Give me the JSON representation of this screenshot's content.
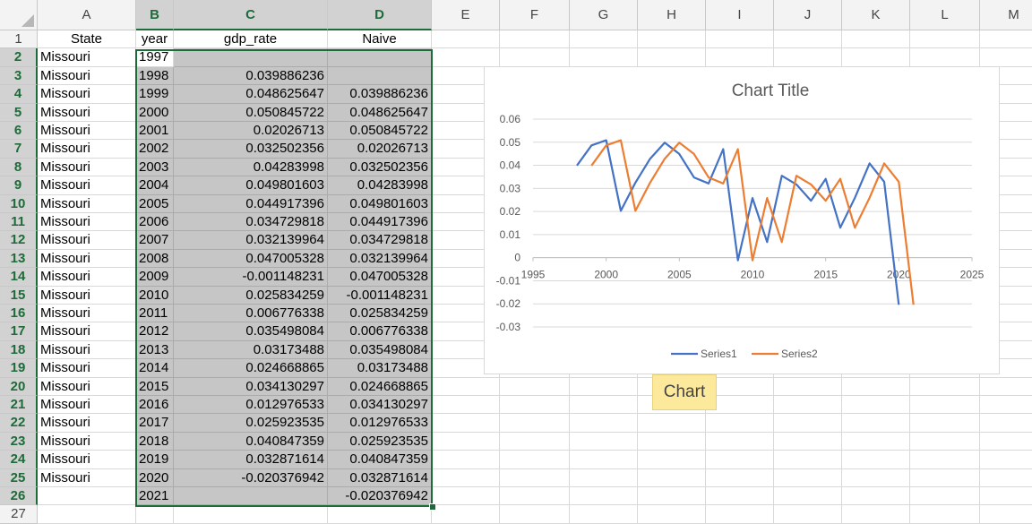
{
  "columns": [
    "A",
    "B",
    "C",
    "D",
    "E",
    "F",
    "G",
    "H",
    "I",
    "J",
    "K",
    "L",
    "M"
  ],
  "selected_columns": [
    "B",
    "C",
    "D"
  ],
  "headers": {
    "state": "State",
    "year": "year",
    "gdp_rate": "gdp_rate",
    "naive": "Naive"
  },
  "rows": [
    {
      "state": "Missouri",
      "year": "1997",
      "gdp_rate": "",
      "naive": ""
    },
    {
      "state": "Missouri",
      "year": "1998",
      "gdp_rate": "0.039886236",
      "naive": ""
    },
    {
      "state": "Missouri",
      "year": "1999",
      "gdp_rate": "0.048625647",
      "naive": "0.039886236"
    },
    {
      "state": "Missouri",
      "year": "2000",
      "gdp_rate": "0.050845722",
      "naive": "0.048625647"
    },
    {
      "state": "Missouri",
      "year": "2001",
      "gdp_rate": "0.02026713",
      "naive": "0.050845722"
    },
    {
      "state": "Missouri",
      "year": "2002",
      "gdp_rate": "0.032502356",
      "naive": "0.02026713"
    },
    {
      "state": "Missouri",
      "year": "2003",
      "gdp_rate": "0.04283998",
      "naive": "0.032502356"
    },
    {
      "state": "Missouri",
      "year": "2004",
      "gdp_rate": "0.049801603",
      "naive": "0.04283998"
    },
    {
      "state": "Missouri",
      "year": "2005",
      "gdp_rate": "0.044917396",
      "naive": "0.049801603"
    },
    {
      "state": "Missouri",
      "year": "2006",
      "gdp_rate": "0.034729818",
      "naive": "0.044917396"
    },
    {
      "state": "Missouri",
      "year": "2007",
      "gdp_rate": "0.032139964",
      "naive": "0.034729818"
    },
    {
      "state": "Missouri",
      "year": "2008",
      "gdp_rate": "0.047005328",
      "naive": "0.032139964"
    },
    {
      "state": "Missouri",
      "year": "2009",
      "gdp_rate": "-0.001148231",
      "naive": "0.047005328"
    },
    {
      "state": "Missouri",
      "year": "2010",
      "gdp_rate": "0.025834259",
      "naive": "-0.001148231"
    },
    {
      "state": "Missouri",
      "year": "2011",
      "gdp_rate": "0.006776338",
      "naive": "0.025834259"
    },
    {
      "state": "Missouri",
      "year": "2012",
      "gdp_rate": "0.035498084",
      "naive": "0.006776338"
    },
    {
      "state": "Missouri",
      "year": "2013",
      "gdp_rate": "0.03173488",
      "naive": "0.035498084"
    },
    {
      "state": "Missouri",
      "year": "2014",
      "gdp_rate": "0.024668865",
      "naive": "0.03173488"
    },
    {
      "state": "Missouri",
      "year": "2015",
      "gdp_rate": "0.034130297",
      "naive": "0.024668865"
    },
    {
      "state": "Missouri",
      "year": "2016",
      "gdp_rate": "0.012976533",
      "naive": "0.034130297"
    },
    {
      "state": "Missouri",
      "year": "2017",
      "gdp_rate": "0.025923535",
      "naive": "0.012976533"
    },
    {
      "state": "Missouri",
      "year": "2018",
      "gdp_rate": "0.040847359",
      "naive": "0.025923535"
    },
    {
      "state": "Missouri",
      "year": "2019",
      "gdp_rate": "0.032871614",
      "naive": "0.040847359"
    },
    {
      "state": "Missouri",
      "year": "2020",
      "gdp_rate": "-0.020376942",
      "naive": "0.032871614"
    },
    {
      "state": "",
      "year": "2021",
      "gdp_rate": "",
      "naive": "-0.020376942"
    }
  ],
  "chart_tooltip": "Chart",
  "chart_data": {
    "type": "scatter",
    "title": "Chart Title",
    "xlim": [
      1995,
      2025
    ],
    "ylim": [
      -0.03,
      0.06
    ],
    "x_ticks": [
      "1995",
      "2000",
      "2005",
      "2010",
      "2015",
      "2020",
      "2025"
    ],
    "y_ticks": [
      "0.06",
      "0.05",
      "0.04",
      "0.03",
      "0.02",
      "0.01",
      "0",
      "-0.01",
      "-0.02",
      "-0.03"
    ],
    "grid": true,
    "legend": "bottom",
    "series": [
      {
        "name": "Series1",
        "color": "#4472c4",
        "x": [
          1998,
          1999,
          2000,
          2001,
          2002,
          2003,
          2004,
          2005,
          2006,
          2007,
          2008,
          2009,
          2010,
          2011,
          2012,
          2013,
          2014,
          2015,
          2016,
          2017,
          2018,
          2019,
          2020
        ],
        "y": [
          0.039886236,
          0.048625647,
          0.050845722,
          0.02026713,
          0.032502356,
          0.04283998,
          0.049801603,
          0.044917396,
          0.034729818,
          0.032139964,
          0.047005328,
          -0.001148231,
          0.025834259,
          0.006776338,
          0.035498084,
          0.03173488,
          0.024668865,
          0.034130297,
          0.012976533,
          0.025923535,
          0.040847359,
          0.032871614,
          -0.020376942
        ]
      },
      {
        "name": "Series2",
        "color": "#ed7d31",
        "x": [
          1999,
          2000,
          2001,
          2002,
          2003,
          2004,
          2005,
          2006,
          2007,
          2008,
          2009,
          2010,
          2011,
          2012,
          2013,
          2014,
          2015,
          2016,
          2017,
          2018,
          2019,
          2020,
          2021
        ],
        "y": [
          0.039886236,
          0.048625647,
          0.050845722,
          0.02026713,
          0.032502356,
          0.04283998,
          0.049801603,
          0.044917396,
          0.034729818,
          0.032139964,
          0.047005328,
          -0.001148231,
          0.025834259,
          0.006776338,
          0.035498084,
          0.03173488,
          0.024668865,
          0.034130297,
          0.012976533,
          0.025923535,
          0.040847359,
          0.032871614,
          -0.020376942
        ]
      }
    ]
  }
}
